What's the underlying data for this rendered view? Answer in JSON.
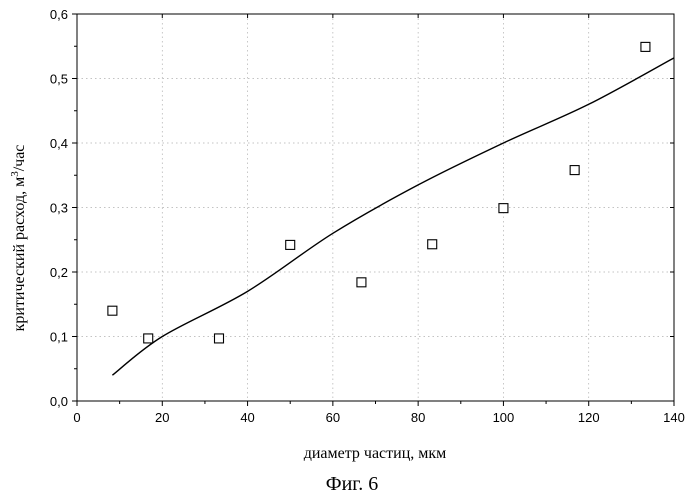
{
  "chart_data": {
    "type": "scatter",
    "xlabel": "диаметр частиц, мкм",
    "ylabel_main": "критический расход, м",
    "ylabel_sup": "3",
    "ylabel_tail": "/час",
    "xlim": [
      0,
      140
    ],
    "ylim": [
      0,
      0.6
    ],
    "x_ticks": [
      0,
      20,
      40,
      60,
      80,
      100,
      120,
      140
    ],
    "y_ticks": [
      0.0,
      0.1,
      0.2,
      0.3,
      0.4,
      0.5,
      0.6
    ],
    "x_tick_labels": [
      "0",
      "20",
      "40",
      "60",
      "80",
      "100",
      "120",
      "140"
    ],
    "y_tick_labels": [
      "0,0",
      "0,1",
      "0,2",
      "0,3",
      "0,4",
      "0,5",
      "0,6"
    ],
    "grid": true,
    "series": [
      {
        "marker": "open-square",
        "x": [
          8.3,
          16.7,
          33.3,
          50.0,
          66.7,
          83.3,
          100.0,
          116.7,
          133.3
        ],
        "y": [
          0.14,
          0.097,
          0.097,
          0.242,
          0.184,
          0.243,
          0.299,
          0.358,
          0.549
        ]
      },
      {
        "style": "line",
        "x": [
          8.3,
          20,
          40,
          60,
          80,
          100,
          120,
          140
        ],
        "y": [
          0.04,
          0.1,
          0.17,
          0.26,
          0.335,
          0.4,
          0.46,
          0.532
        ]
      }
    ]
  },
  "caption": "Фиг. 6"
}
